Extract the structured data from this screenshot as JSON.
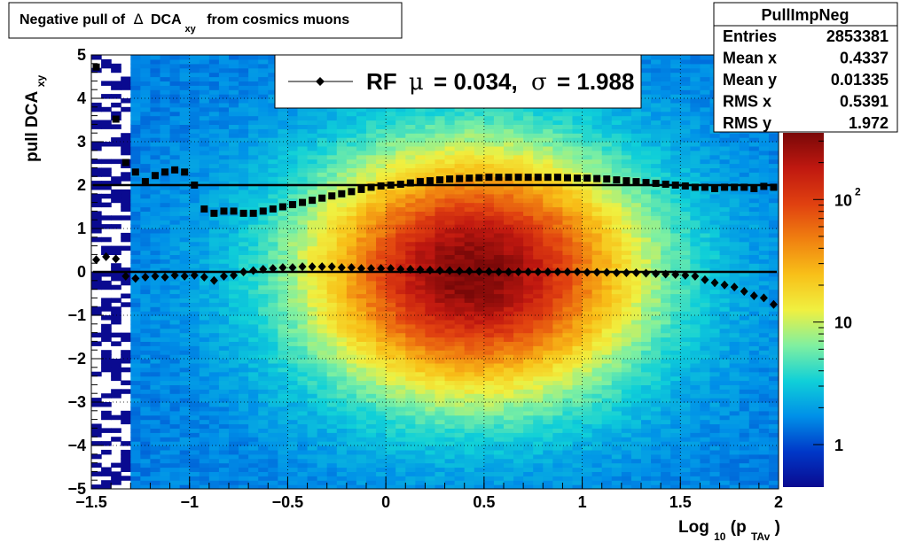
{
  "title": {
    "main": "Negative pull of",
    "delta": "Δ",
    "dca": "DCA",
    "sub": "xy",
    "rest": "from cosmics muons"
  },
  "stats": {
    "name": "PullImpNeg",
    "rows": [
      {
        "label": "Entries",
        "value": "2853381"
      },
      {
        "label": "Mean x",
        "value": "0.4337"
      },
      {
        "label": "Mean y",
        "value": "0.01335"
      },
      {
        "label": "RMS x",
        "value": "0.5391"
      },
      {
        "label": "RMS y",
        "value": "1.972"
      }
    ]
  },
  "legend": {
    "text_prefix": "RF",
    "mu": "μ",
    "mu_value": "=  0.034,",
    "sigma": "σ",
    "sigma_value": "=   1.988"
  },
  "colors": {
    "plot_bg": "#ffffff",
    "marker": "#000000",
    "palette": [
      "#0a0a90",
      "#0038c8",
      "#0090e8",
      "#10d0d8",
      "#80f0a0",
      "#f0f040",
      "#f8c018",
      "#f08010",
      "#e04010",
      "#c01810",
      "#7a0808"
    ]
  },
  "chart_data": {
    "type": "heatmap",
    "xlabel": {
      "main": "Log",
      "sub1": "10",
      "mid": "(p",
      "sub2": "TAv",
      "end": ")"
    },
    "ylabel": {
      "main": "pull DCA",
      "sub": "xy"
    },
    "xlim": [
      -1.5,
      2.0
    ],
    "ylim": [
      -5,
      5
    ],
    "xticks": [
      -1.5,
      -1,
      -0.5,
      0,
      0.5,
      1,
      1.5,
      2
    ],
    "xtick_labels": [
      "−1.5",
      "−1",
      "−0.5",
      "0",
      "0.5",
      "1",
      "1.5",
      "2"
    ],
    "yticks": [
      -5,
      -4,
      -3,
      -2,
      -1,
      0,
      1,
      2,
      3,
      4,
      5
    ],
    "ytick_labels": [
      "−5",
      "−4",
      "−3",
      "−2",
      "−1",
      "0",
      "1",
      "2",
      "3",
      "4",
      "5"
    ],
    "grid": true,
    "zscale": "log",
    "zaxis_labels": [
      {
        "value": 1,
        "label": "1"
      },
      {
        "value": 10,
        "label": "10"
      },
      {
        "value": 100,
        "label": "10",
        "exp": "2"
      }
    ],
    "density": {
      "peak_x": 0.45,
      "peak_y": 0.0,
      "sigma_x": 0.6,
      "sigma_y": 2.0
    },
    "fit_lines": [
      {
        "name": "mean",
        "y": 0.0
      },
      {
        "name": "sigma",
        "y": 2.0
      }
    ],
    "series": [
      {
        "marker": "diamond",
        "x": [
          -1.475,
          -1.425,
          -1.375,
          -1.325,
          -1.275,
          -1.225,
          -1.175,
          -1.125,
          -1.075,
          -1.025,
          -0.975,
          -0.925,
          -0.875,
          -0.825,
          -0.775,
          -0.725,
          -0.675,
          -0.625,
          -0.575,
          -0.525,
          -0.475,
          -0.425,
          -0.375,
          -0.325,
          -0.275,
          -0.225,
          -0.175,
          -0.125,
          -0.075,
          -0.025,
          0.025,
          0.075,
          0.125,
          0.175,
          0.225,
          0.275,
          0.325,
          0.375,
          0.425,
          0.475,
          0.525,
          0.575,
          0.625,
          0.675,
          0.725,
          0.775,
          0.825,
          0.875,
          0.925,
          0.975,
          1.025,
          1.075,
          1.125,
          1.175,
          1.225,
          1.275,
          1.325,
          1.375,
          1.425,
          1.475,
          1.525,
          1.575,
          1.625,
          1.675,
          1.725,
          1.775,
          1.825,
          1.875,
          1.925,
          1.975
        ],
        "y": [
          0.28,
          0.35,
          0.3,
          -0.1,
          -0.15,
          -0.12,
          -0.1,
          -0.12,
          -0.08,
          -0.1,
          -0.08,
          -0.12,
          -0.2,
          -0.1,
          -0.08,
          0.0,
          0.03,
          0.06,
          0.08,
          0.1,
          0.1,
          0.12,
          0.12,
          0.12,
          0.12,
          0.1,
          0.1,
          0.08,
          0.08,
          0.08,
          0.08,
          0.06,
          0.06,
          0.05,
          0.04,
          0.03,
          0.03,
          0.02,
          0.02,
          0.01,
          0.01,
          0.0,
          0.0,
          0.0,
          0.0,
          0.0,
          0.0,
          0.0,
          0.0,
          0.0,
          -0.01,
          -0.01,
          -0.01,
          -0.02,
          -0.02,
          -0.02,
          -0.03,
          -0.04,
          -0.05,
          -0.06,
          -0.08,
          -0.1,
          -0.18,
          -0.25,
          -0.3,
          -0.35,
          -0.45,
          -0.55,
          -0.6,
          -0.75
        ]
      },
      {
        "marker": "square",
        "x": [
          -1.475,
          -1.375,
          -1.325,
          -1.275,
          -1.225,
          -1.175,
          -1.125,
          -1.075,
          -1.025,
          -0.975,
          -0.925,
          -0.875,
          -0.825,
          -0.775,
          -0.725,
          -0.675,
          -0.625,
          -0.575,
          -0.525,
          -0.475,
          -0.425,
          -0.375,
          -0.325,
          -0.275,
          -0.225,
          -0.175,
          -0.125,
          -0.075,
          -0.025,
          0.025,
          0.075,
          0.125,
          0.175,
          0.225,
          0.275,
          0.325,
          0.375,
          0.425,
          0.475,
          0.525,
          0.575,
          0.625,
          0.675,
          0.725,
          0.775,
          0.825,
          0.875,
          0.925,
          0.975,
          1.025,
          1.075,
          1.125,
          1.175,
          1.225,
          1.275,
          1.325,
          1.375,
          1.425,
          1.475,
          1.525,
          1.575,
          1.625,
          1.675,
          1.725,
          1.775,
          1.825,
          1.875,
          1.925,
          1.975
        ],
        "y": [
          4.72,
          3.52,
          2.52,
          2.3,
          2.08,
          2.22,
          2.3,
          2.35,
          2.3,
          2.0,
          1.45,
          1.35,
          1.4,
          1.4,
          1.35,
          1.35,
          1.4,
          1.45,
          1.5,
          1.55,
          1.6,
          1.65,
          1.7,
          1.75,
          1.8,
          1.85,
          1.9,
          1.95,
          1.98,
          2.0,
          2.02,
          2.05,
          2.08,
          2.1,
          2.12,
          2.14,
          2.15,
          2.16,
          2.17,
          2.18,
          2.18,
          2.18,
          2.18,
          2.18,
          2.18,
          2.18,
          2.18,
          2.17,
          2.16,
          2.16,
          2.15,
          2.14,
          2.12,
          2.1,
          2.08,
          2.06,
          2.04,
          2.02,
          2.0,
          1.98,
          1.95,
          1.95,
          1.92,
          1.95,
          1.95,
          1.95,
          1.92,
          1.97,
          1.95
        ]
      }
    ]
  }
}
